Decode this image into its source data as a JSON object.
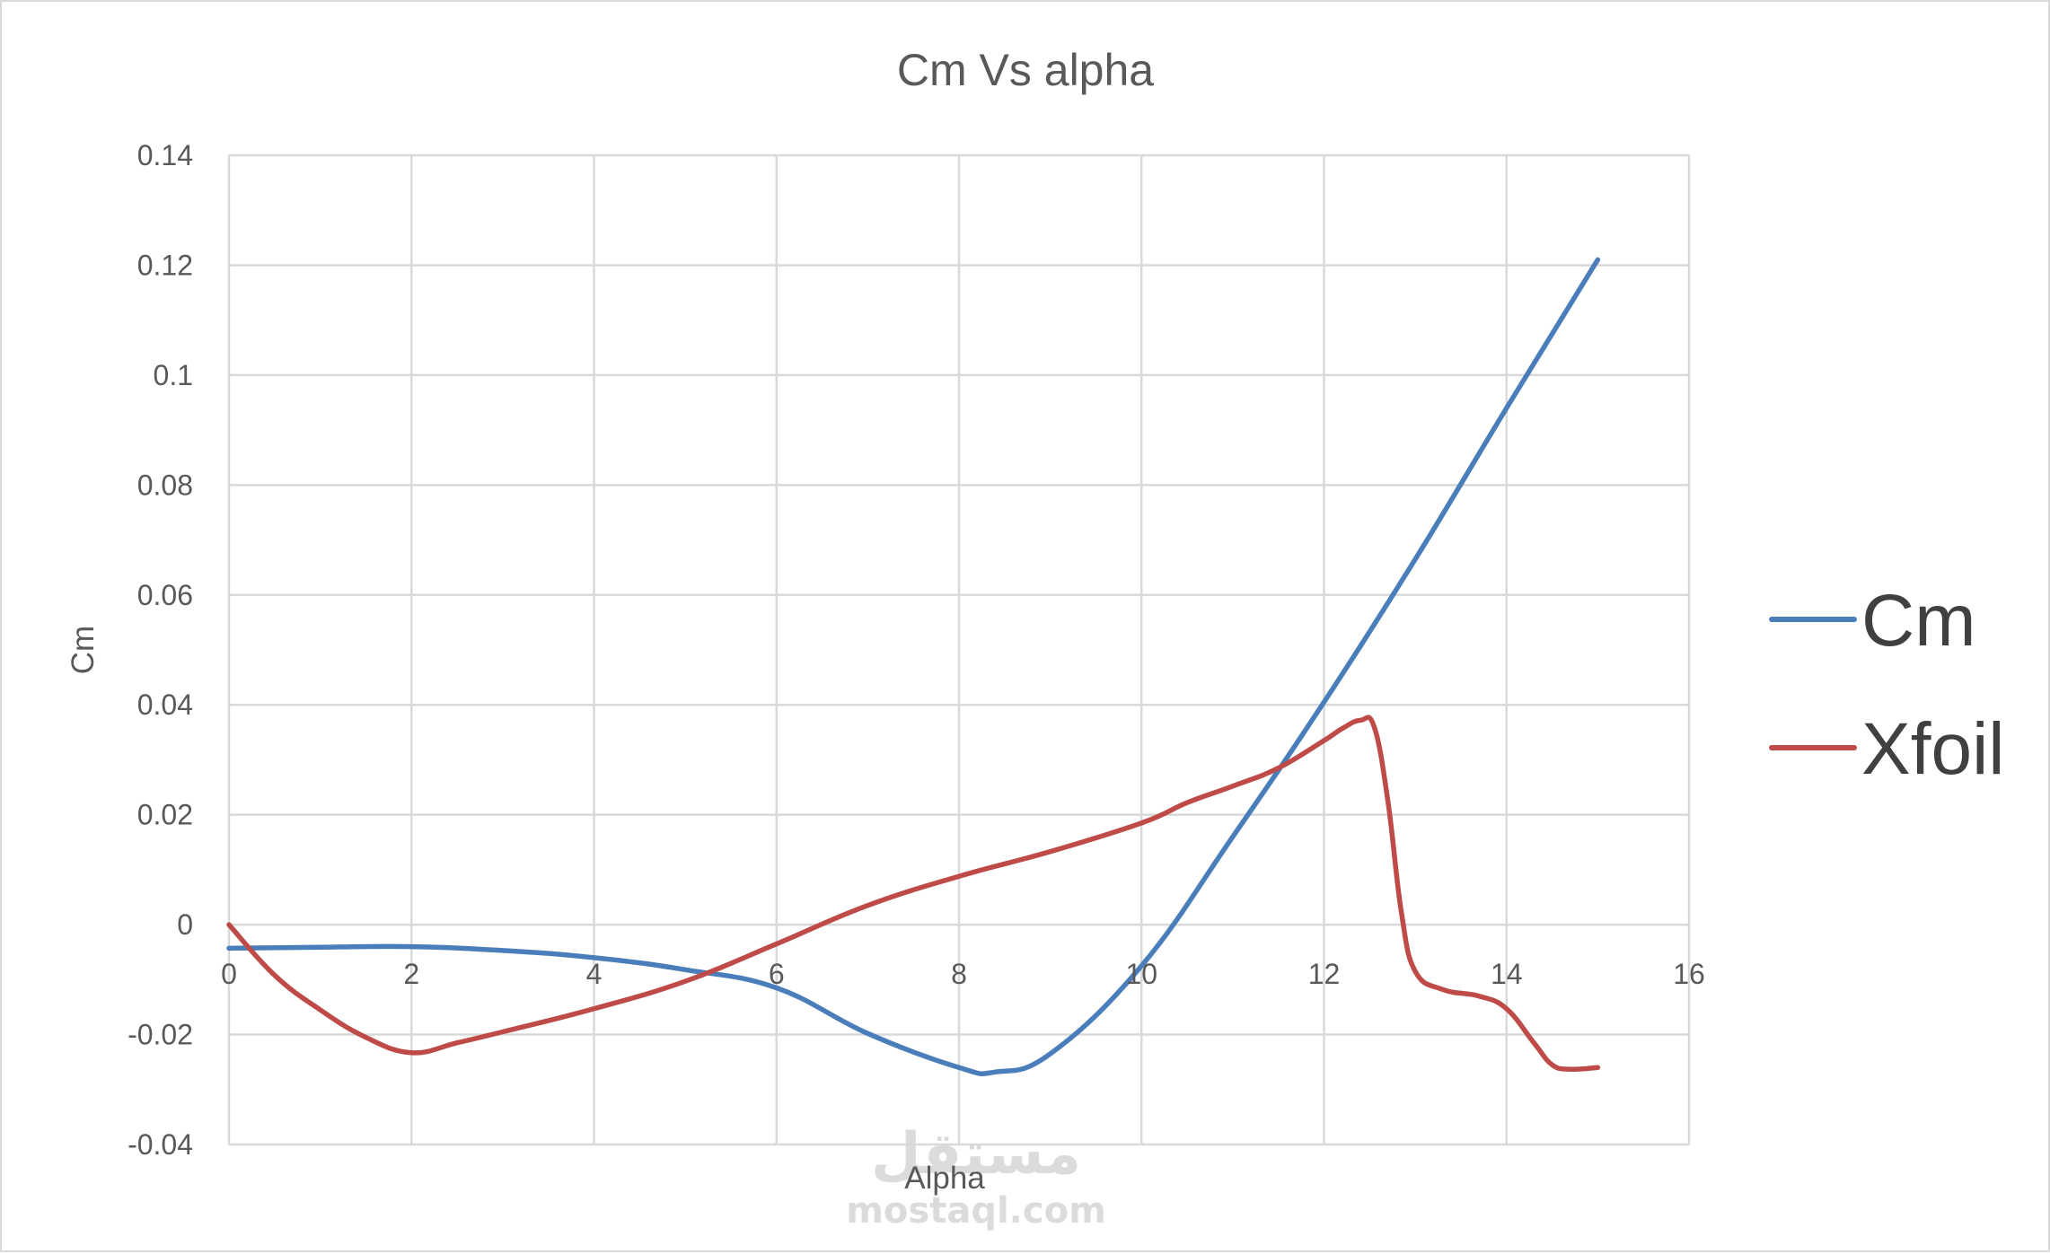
{
  "chart_data": {
    "type": "line",
    "title": "Cm Vs alpha",
    "xlabel": "Alpha",
    "ylabel": "Cm",
    "xlim": [
      0,
      16
    ],
    "ylim": [
      -0.04,
      0.14
    ],
    "xticks": [
      "0",
      "2",
      "4",
      "6",
      "8",
      "10",
      "12",
      "14",
      "16"
    ],
    "yticks": [
      "-0.04",
      "-0.02",
      "0",
      "0.02",
      "0.04",
      "0.06",
      "0.08",
      "0.1",
      "0.12",
      "0.14"
    ],
    "grid": true,
    "legend_position": "right",
    "series": [
      {
        "name": "Cm",
        "color": "#4a7ebb",
        "x": [
          0,
          1,
          2,
          3,
          4,
          5,
          6,
          7,
          8,
          8.4,
          9,
          10,
          11,
          12,
          13,
          14,
          15
        ],
        "y": [
          -0.0043,
          -0.0041,
          -0.004,
          -0.0047,
          -0.006,
          -0.0082,
          -0.0115,
          -0.0198,
          -0.026,
          -0.0268,
          -0.0235,
          -0.0075,
          0.016,
          0.0405,
          0.0665,
          0.094,
          0.121
        ]
      },
      {
        "name": "Xfoil",
        "color": "#be4b48",
        "x": [
          0,
          0.5,
          1,
          1.5,
          2,
          2.5,
          3,
          4,
          5,
          6,
          7,
          8,
          9,
          10,
          10.5,
          11,
          11.5,
          12,
          12.2,
          12.4,
          12.55,
          12.7,
          12.85,
          13,
          13.3,
          13.7,
          14,
          14.3,
          14.5,
          14.7,
          15
        ],
        "y": [
          0,
          -0.0092,
          -0.0155,
          -0.0205,
          -0.0233,
          -0.0215,
          -0.0195,
          -0.0153,
          -0.0103,
          -0.0035,
          0.0035,
          0.0088,
          0.0133,
          0.0185,
          0.0222,
          0.0252,
          0.0285,
          0.0335,
          0.0357,
          0.0372,
          0.036,
          0.0225,
          0.002,
          -0.0085,
          -0.0118,
          -0.013,
          -0.0153,
          -0.0215,
          -0.0255,
          -0.0263,
          -0.026
        ]
      }
    ]
  },
  "legend": {
    "items": [
      {
        "label": "Cm",
        "color": "#4a7ebb"
      },
      {
        "label": "Xfoil",
        "color": "#be4b48"
      }
    ]
  },
  "watermark": {
    "arabic": "مستقل",
    "latin": "mostaql.com"
  }
}
